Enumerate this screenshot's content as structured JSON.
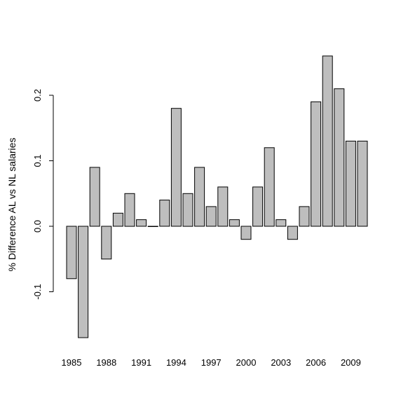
{
  "chart_data": {
    "type": "bar",
    "title": "",
    "xlabel": "",
    "ylabel": "% Difference AL vs NL salaries",
    "ylim": [
      -0.17,
      0.26
    ],
    "y_ticks": [
      -0.1,
      0.0,
      0.1,
      0.2
    ],
    "y_tick_labels": [
      "-0.1",
      "0.0",
      "0.1",
      "0.2"
    ],
    "x_tick_labels_shown": [
      "1985",
      "1988",
      "1991",
      "1994",
      "1997",
      "2000",
      "2003",
      "2006",
      "2009"
    ],
    "categories": [
      "1985",
      "1986",
      "1987",
      "1988",
      "1989",
      "1990",
      "1991",
      "1992",
      "1993",
      "1994",
      "1995",
      "1996",
      "1997",
      "1998",
      "1999",
      "2000",
      "2001",
      "2002",
      "2003",
      "2004",
      "2005",
      "2006",
      "2007",
      "2008",
      "2009",
      "2010"
    ],
    "values": [
      -0.08,
      -0.17,
      0.09,
      -0.05,
      0.02,
      0.05,
      0.01,
      0.0,
      0.04,
      0.18,
      0.05,
      0.09,
      0.03,
      0.06,
      0.01,
      -0.02,
      0.06,
      0.12,
      0.01,
      -0.02,
      0.03,
      0.19,
      0.26,
      0.21,
      0.13,
      0.13
    ],
    "bar_color": "#bebebe",
    "grid": false
  }
}
